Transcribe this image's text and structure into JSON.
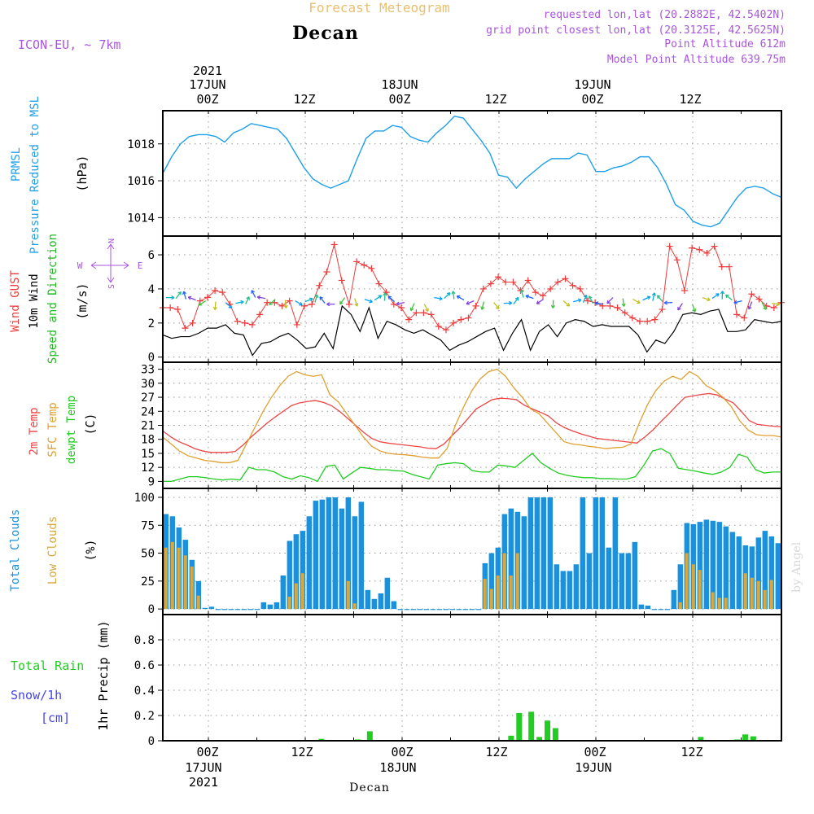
{
  "header": {
    "supertitle": "Forecast Meteogram",
    "location": "Decan",
    "model": "ICON-EU, ~ 7km",
    "requested": "requested lon,lat (20.2882E, 42.5402N)",
    "gridpoint": "grid point closest lon,lat (20.3125E, 42.5625N)",
    "point_alt": "Point Altitude 612m",
    "model_alt": "Model Point Altitude 639.75m",
    "watermark": "by Angel",
    "footer_location": "Decan"
  },
  "time_axis": {
    "top": [
      {
        "hour": "00Z",
        "day": "17JUN",
        "year": "2021"
      },
      {
        "hour": "12Z",
        "day": "",
        "year": ""
      },
      {
        "hour": "00Z",
        "day": "18JUN",
        "year": ""
      },
      {
        "hour": "12Z",
        "day": "",
        "year": ""
      },
      {
        "hour": "00Z",
        "day": "19JUN",
        "year": ""
      },
      {
        "hour": "12Z",
        "day": "",
        "year": ""
      }
    ],
    "bottom": [
      {
        "hour": "00Z",
        "day": "17JUN",
        "year": "2021"
      },
      {
        "hour": "12Z",
        "day": "",
        "year": ""
      },
      {
        "hour": "00Z",
        "day": "18JUN",
        "year": ""
      },
      {
        "hour": "12Z",
        "day": "",
        "year": ""
      },
      {
        "hour": "00Z",
        "day": "19JUN",
        "year": ""
      },
      {
        "hour": "12Z",
        "day": "",
        "year": ""
      }
    ]
  },
  "panel_labels": {
    "pressure": {
      "title1": "PRMSL",
      "title2": "Pressure Reduced to MSL",
      "unit": "(hPa)"
    },
    "wind": {
      "gust": "Wind GUST",
      "wind10": "10m Wind",
      "dir": "Speed and Direction",
      "unit": "(m/s)",
      "compass_n": "N",
      "compass_s": "S",
      "compass_w": "W",
      "compass_e": "E"
    },
    "temp": {
      "t2m": "2m Temp",
      "sfc": "SFC Temp",
      "dewpt": "dewpt Temp",
      "unit": "(C)"
    },
    "clouds": {
      "total": "Total Clouds",
      "low": "Low Clouds",
      "unit": "(%)"
    },
    "precip": {
      "rain": "Total  Rain",
      "snow": "Snow/1h",
      "snow_unit": "[cm]",
      "axis": "1hr Precip (mm)"
    }
  },
  "colors": {
    "pressure": "#1f9fe8",
    "gust": "#ee3a3a",
    "wind10": "#000000",
    "t2m": "#ee4444",
    "sfc": "#e0a030",
    "dewpt": "#22cc22",
    "total_clouds": "#1a90e0",
    "low_clouds": "#d8a840",
    "rain": "#22cc22",
    "snow": "#4444ee",
    "header_purple": "#aa55dd",
    "supertitle": "#e8c070"
  },
  "chart_data": [
    {
      "type": "line",
      "title": "PRMSL Pressure Reduced to MSL",
      "ylabel": "(hPa)",
      "ylim": [
        1013,
        1019.8
      ],
      "yticks": [
        1014,
        1016,
        1018
      ],
      "x_hours": [
        -4,
        -3,
        -2,
        -1,
        0,
        1,
        2,
        3,
        4,
        5,
        6,
        7,
        8,
        9,
        10,
        11,
        12,
        13,
        14,
        15,
        16,
        17,
        18,
        19,
        20,
        21,
        22,
        23,
        24,
        25,
        26,
        27,
        28,
        29,
        30,
        31,
        32,
        33,
        34,
        35,
        36,
        37,
        38,
        39,
        40,
        41,
        42,
        43,
        44,
        45,
        46,
        47,
        48,
        49,
        50,
        51,
        52,
        53,
        54,
        55,
        56,
        57,
        58,
        59,
        60,
        61,
        62,
        63,
        64,
        65,
        66,
        67,
        68,
        69,
        70,
        71,
        72
      ],
      "series": [
        {
          "name": "PRMSL",
          "values": [
            1016.4,
            1017.3,
            1018.0,
            1018.4,
            1018.5,
            1018.5,
            1018.4,
            1018.1,
            1018.6,
            1018.8,
            1019.1,
            1019.0,
            1018.9,
            1018.8,
            1018.3,
            1017.5,
            1016.7,
            1016.1,
            1015.8,
            1015.6,
            1015.8,
            1016.0,
            1017.2,
            1018.3,
            1018.7,
            1018.7,
            1019.0,
            1018.9,
            1018.4,
            1018.2,
            1018.1,
            1018.6,
            1019.0,
            1019.5,
            1019.4,
            1018.8,
            1018.2,
            1017.5,
            1016.3,
            1016.2,
            1015.6,
            1016.1,
            1016.5,
            1016.9,
            1017.2,
            1017.2,
            1017.2,
            1017.5,
            1017.4,
            1016.5,
            1016.5,
            1016.7,
            1016.8,
            1017.0,
            1017.3,
            1017.3,
            1016.7,
            1015.8,
            1014.7,
            1014.4,
            1013.8,
            1013.6,
            1013.5,
            1013.7,
            1014.4,
            1015.1,
            1015.6,
            1015.7,
            1015.6,
            1015.3,
            1015.1
          ]
        }
      ]
    },
    {
      "type": "line",
      "title": "Wind GUST / 10m Wind Speed and Direction",
      "ylabel": "(m/s)",
      "ylim": [
        -0.3,
        7.1
      ],
      "yticks": [
        0,
        2,
        4,
        6
      ],
      "series": [
        {
          "name": "Wind GUST",
          "values": [
            2.9,
            2.9,
            2.8,
            1.7,
            2.0,
            3.3,
            3.5,
            3.9,
            3.8,
            3.1,
            2.1,
            2.0,
            1.9,
            2.5,
            3.2,
            3.2,
            3.0,
            3.3,
            1.9,
            3.0,
            3.1,
            4.2,
            5.0,
            6.6,
            4.5,
            3.1,
            5.6,
            5.4,
            5.2,
            4.3,
            3.8,
            3.1,
            2.9,
            2.2,
            2.6,
            2.6,
            2.5,
            1.8,
            1.6,
            2.0,
            2.2,
            2.3,
            3.0,
            4.0,
            4.3,
            4.7,
            4.4,
            4.4,
            3.9,
            4.5,
            3.8,
            3.6,
            4.0,
            4.4,
            4.6,
            4.2,
            4.0,
            3.3,
            3.2,
            3.0,
            3.0,
            2.9,
            2.6,
            2.3,
            2.1,
            2.1,
            2.2,
            2.8,
            6.5,
            5.7,
            3.9,
            6.4,
            6.3,
            6.1,
            6.5,
            5.3,
            5.3,
            2.5,
            2.3,
            3.7,
            3.4,
            3.0,
            2.9,
            3.2
          ]
        },
        {
          "name": "10m Wind",
          "values": [
            1.3,
            1.1,
            1.2,
            1.2,
            1.4,
            1.7,
            1.7,
            1.9,
            1.4,
            1.3,
            0.1,
            0.8,
            0.9,
            1.2,
            1.4,
            1.0,
            0.5,
            0.6,
            1.4,
            0.5,
            3.0,
            2.5,
            1.5,
            2.9,
            1.1,
            2.1,
            1.9,
            1.6,
            1.4,
            1.6,
            1.3,
            1.0,
            0.4,
            0.7,
            0.9,
            1.2,
            1.5,
            1.7,
            0.4,
            1.4,
            2.2,
            0.4,
            1.5,
            1.9,
            1.2,
            2.0,
            2.2,
            2.1,
            1.8,
            1.9,
            1.8,
            1.8,
            1.8,
            1.3,
            0.3,
            1.0,
            0.8,
            1.5,
            2.5,
            2.6,
            2.5,
            2.7,
            2.8,
            1.5,
            1.5,
            1.6,
            2.2,
            2.1,
            2.0,
            2.1
          ]
        }
      ]
    },
    {
      "type": "line",
      "title": "2m Temp / SFC Temp / dewpt Temp",
      "ylabel": "(C)",
      "ylim": [
        7.5,
        34.5
      ],
      "yticks": [
        9,
        12,
        15,
        18,
        21,
        24,
        27,
        30,
        33
      ],
      "series": [
        {
          "name": "2m Temp",
          "values": [
            19.8,
            18.5,
            17.5,
            16.8,
            16.0,
            15.5,
            15.2,
            15.2,
            15.2,
            15.4,
            16.8,
            18.5,
            20.0,
            21.5,
            22.8,
            24.0,
            25.2,
            25.8,
            26.1,
            26.3,
            25.9,
            25.2,
            24.0,
            22.5,
            21.0,
            19.5,
            18.2,
            17.5,
            17.2,
            17.0,
            16.8,
            16.6,
            16.4,
            16.1,
            16.0,
            17.0,
            18.8,
            20.5,
            22.5,
            24.5,
            25.5,
            26.5,
            26.8,
            26.7,
            26.5,
            25.3,
            24.5,
            23.8,
            23.0,
            21.5,
            20.5,
            19.8,
            19.2,
            18.7,
            18.2,
            18.0,
            17.8,
            17.6,
            17.4,
            17.2,
            18.5,
            20.0,
            21.8,
            23.5,
            25.3,
            27.0,
            27.3,
            27.6,
            27.8,
            27.5,
            26.6,
            25.8,
            24.0,
            22.0,
            21.2,
            21.0,
            20.8,
            20.7
          ]
        },
        {
          "name": "SFC Temp",
          "values": [
            18.5,
            17.0,
            15.5,
            14.5,
            14.0,
            13.5,
            13.3,
            13.0,
            13.0,
            13.5,
            17.0,
            20.5,
            24.0,
            27.0,
            29.5,
            31.5,
            32.5,
            31.8,
            31.5,
            31.8,
            27.5,
            26.0,
            23.5,
            21.0,
            18.5,
            16.5,
            15.5,
            15.0,
            14.8,
            14.7,
            14.5,
            14.2,
            14.0,
            14.0,
            16.0,
            21.0,
            25.0,
            28.5,
            31.0,
            32.5,
            33.0,
            31.5,
            29.0,
            27.0,
            24.5,
            23.5,
            21.5,
            19.5,
            17.5,
            17.0,
            16.8,
            16.5,
            16.3,
            16.0,
            16.2,
            16.3,
            17.0,
            21.5,
            25.5,
            28.5,
            30.5,
            31.5,
            30.8,
            32.5,
            31.5,
            29.5,
            28.5,
            27.0,
            25.0,
            22.0,
            20.0,
            19.0,
            18.8,
            18.8,
            18.5
          ]
        },
        {
          "name": "dewpt Temp",
          "values": [
            9.0,
            9.0,
            9.5,
            10.0,
            10.0,
            9.8,
            9.5,
            9.3,
            9.5,
            9.3,
            12.0,
            11.5,
            11.5,
            11.0,
            10.0,
            9.5,
            10.2,
            9.8,
            9.0,
            12.2,
            12.5,
            9.5,
            10.8,
            12.0,
            11.8,
            11.5,
            11.5,
            11.3,
            11.2,
            10.5,
            10.0,
            9.5,
            12.5,
            12.8,
            13.0,
            12.8,
            11.3,
            11.0,
            11.0,
            12.5,
            12.3,
            12.0,
            13.5,
            15.0,
            13.0,
            11.8,
            10.8,
            10.3,
            10.0,
            9.8,
            9.8,
            9.6,
            9.6,
            9.5,
            9.5,
            10.0,
            12.5,
            15.5,
            16.0,
            15.0,
            11.8,
            11.5,
            11.2,
            10.8,
            10.5,
            11.0,
            12.0,
            14.8,
            14.2,
            11.5,
            10.8,
            11.0,
            11.0
          ]
        }
      ]
    },
    {
      "type": "bar",
      "title": "Total Clouds / Low Clouds",
      "ylabel": "(%)",
      "ylim": [
        -5,
        108
      ],
      "yticks": [
        0,
        25,
        50,
        75,
        100
      ],
      "series": [
        {
          "name": "Total Clouds",
          "values": [
            85,
            83,
            73,
            62,
            44,
            25,
            1,
            2,
            0,
            0,
            0,
            0,
            0,
            0,
            0,
            6,
            4,
            6,
            30,
            61,
            67,
            70,
            83,
            97,
            98,
            100,
            100,
            90,
            100,
            83,
            96,
            17,
            9,
            14,
            28,
            7,
            0,
            0,
            0,
            0,
            0,
            0,
            0,
            0,
            0,
            0,
            0,
            0,
            0,
            41,
            50,
            55,
            85,
            90,
            87,
            83,
            100,
            100,
            100,
            100,
            40,
            34,
            34,
            40,
            100,
            50,
            100,
            100,
            55,
            100,
            50,
            50,
            60,
            4,
            3,
            0,
            0,
            0,
            17,
            40,
            77,
            76,
            78,
            80,
            79,
            78,
            74,
            69,
            65,
            57,
            56,
            64,
            70,
            65,
            59
          ]
        },
        {
          "name": "Low Clouds",
          "values": [
            55,
            60,
            55,
            48,
            38,
            12,
            0,
            0,
            0,
            0,
            0,
            0,
            0,
            0,
            0,
            0,
            0,
            0,
            0,
            11,
            23,
            32,
            0,
            0,
            0,
            0,
            0,
            0,
            25,
            5,
            0,
            0,
            0,
            0,
            0,
            0,
            0,
            0,
            0,
            0,
            0,
            0,
            0,
            0,
            0,
            0,
            0,
            0,
            0,
            27,
            18,
            30,
            50,
            30,
            50,
            0,
            0,
            0,
            0,
            0,
            0,
            0,
            0,
            0,
            0,
            0,
            0,
            0,
            0,
            0,
            0,
            0,
            0,
            0,
            0,
            0,
            0,
            0,
            0,
            6,
            50,
            40,
            35,
            0,
            15,
            10,
            10,
            0,
            0,
            32,
            28,
            25,
            17,
            26
          ]
        }
      ]
    },
    {
      "type": "bar",
      "title": "Total Rain / Snow/1h",
      "ylabel": "1hr Precip (mm)",
      "ylim": [
        0,
        1.0
      ],
      "yticks": [
        0,
        0.2,
        0.4,
        0.6,
        0.8
      ],
      "series": [
        {
          "name": "Total Rain",
          "points": [
            [
              11,
              0.005
            ],
            [
              14,
              0.015
            ],
            [
              18.5,
              0.01
            ],
            [
              20,
              0.075
            ],
            [
              37.5,
              0.04
            ],
            [
              38.5,
              0.22
            ],
            [
              40,
              0.23
            ],
            [
              41,
              0.03
            ],
            [
              42,
              0.16
            ],
            [
              43,
              0.1
            ],
            [
              61,
              0.03
            ],
            [
              65.5,
              0.01
            ],
            [
              66.5,
              0.05
            ],
            [
              67.5,
              0.035
            ]
          ]
        }
      ]
    }
  ]
}
